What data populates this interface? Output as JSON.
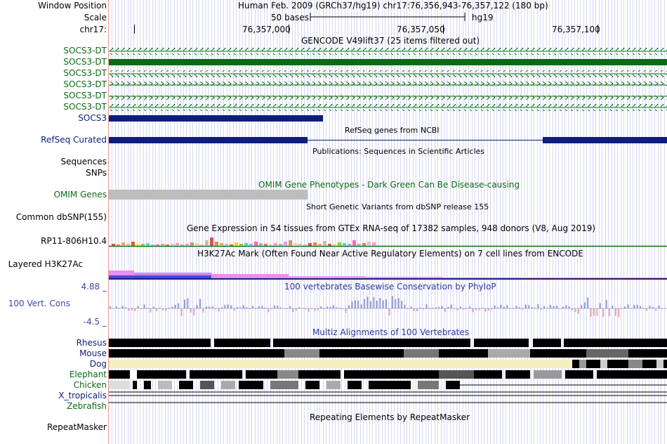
{
  "header": {
    "window_position_label": "Window Position",
    "scale_label": "Scale",
    "chrom_label": "chr17:",
    "assembly_text": "Human Feb. 2009 (GRCh37/hg19)   chr17:76,356,943-76,357,122 (180 bp)",
    "scale_text": "50 bases",
    "scale_db": "hg19",
    "ruler_ticks": [
      "76,357,000",
      "76,357,050",
      "76,357,100"
    ]
  },
  "tracks": {
    "gencode_title": "GENCODE V49lift37 (25 items filtered out)",
    "gencode_items": [
      "SOCS3-DT",
      "SOCS3-DT",
      "SOCS3-DT",
      "SOCS3-DT",
      "SOCS3-DT",
      "SOCS3-DT"
    ],
    "socs3_label": "SOCS3",
    "refseq_title": "RefSeq genes from NCBI",
    "refseq_label": "RefSeq Curated",
    "pubs_title": "Publications: Sequences in Scientific Articles",
    "sequences_label": "Sequences",
    "snps_label": "SNPs",
    "omim_title": "OMIM Gene Phenotypes - Dark Green Can Be Disease-causing",
    "omim_label": "OMIM Genes",
    "dbsnp_title": "Short Genetic Variants from dbSNP release 155",
    "dbsnp_label": "Common dbSNP(155)",
    "gtex_title": "Gene Expression in 54 tissues from GTEx RNA-seq of 17382 samples, 948 donors (V8, Aug 2019)",
    "gtex_label": "RP11-806H10.4",
    "h3k_title": "H3K27Ac Mark (Often Found Near Active Regulatory Elements) on 7 cell lines from ENCODE",
    "h3k_label": "Layered H3K27Ac",
    "cons_title": "100 vertebrates Basewise Conservation by PhyloP",
    "cons_label": "100 Vert. Cons",
    "cons_max": "4.88 _",
    "cons_min": "-4.5 _",
    "multiz_title": "Multiz Alignments of 100 Vertebrates",
    "species": [
      "Rhesus",
      "Mouse",
      "Dog",
      "Elephant",
      "Chicken",
      "X_tropicalis",
      "Zebrafish"
    ],
    "repeat_title": "Repeating Elements by RepeatMasker",
    "repeat_label": "RepeatMasker"
  },
  "colors": {
    "gencode_green": "#0b6b12",
    "navy": "#0c1d7a",
    "omim_gray": "#bdbdbd",
    "grid": "#d7d7f5"
  }
}
